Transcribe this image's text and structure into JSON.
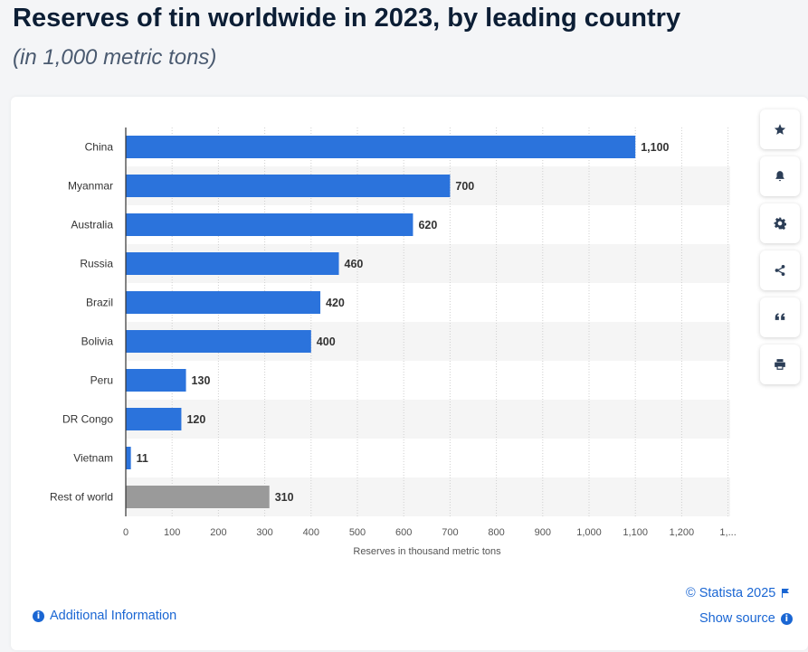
{
  "header": {
    "title": "Reserves of tin worldwide in 2023, by leading country",
    "subtitle": "(in 1,000 metric tons)"
  },
  "chart_data": {
    "type": "bar",
    "orientation": "horizontal",
    "categories": [
      "China",
      "Myanmar",
      "Australia",
      "Russia",
      "Brazil",
      "Bolivia",
      "Peru",
      "DR Congo",
      "Vietnam",
      "Rest of world"
    ],
    "values": [
      1100,
      700,
      620,
      460,
      420,
      400,
      130,
      120,
      11,
      310
    ],
    "value_labels": [
      "1,100",
      "700",
      "620",
      "460",
      "420",
      "400",
      "130",
      "120",
      "11",
      "310"
    ],
    "xlabel": "Reserves in thousand metric tons",
    "ylabel": "",
    "xlim": [
      0,
      1300
    ],
    "x_ticks": [
      "0",
      "100",
      "200",
      "300",
      "400",
      "500",
      "600",
      "700",
      "800",
      "900",
      "1,000",
      "1,100",
      "1,200",
      "1,..."
    ],
    "bar_color": "#2b73dc",
    "highlight_color": "#9a9a9a",
    "highlight_category": "Rest of world"
  },
  "sidebar": {
    "buttons": [
      {
        "name": "favorite",
        "icon": "star-icon"
      },
      {
        "name": "notification",
        "icon": "bell-icon"
      },
      {
        "name": "settings",
        "icon": "gear-icon"
      },
      {
        "name": "share",
        "icon": "share-icon"
      },
      {
        "name": "cite",
        "icon": "quote-icon"
      },
      {
        "name": "print",
        "icon": "printer-icon"
      }
    ]
  },
  "footer": {
    "additional_info": "Additional Information",
    "copyright": "© Statista 2025",
    "show_source": "Show source"
  },
  "colors": {
    "accent": "#1a66d3",
    "title": "#0c1e35"
  }
}
